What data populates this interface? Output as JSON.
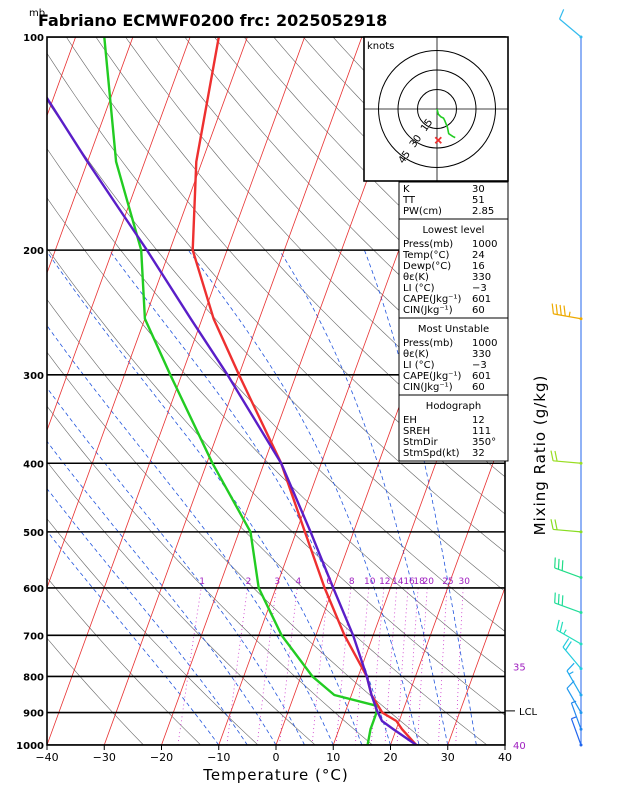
{
  "header": {
    "pressure_unit": "mb",
    "title": "Fabriano ECMWF0200  frc: 2025052918"
  },
  "chart_data": {
    "type": "line",
    "xlabel": "Temperature (°C)",
    "ylabel_right": "Mixing Ratio  (g/kg)",
    "x_ticks": [
      -40,
      -30,
      -20,
      -10,
      0,
      10,
      20,
      30,
      40
    ],
    "x_tick_labels": [
      "−40",
      "−30",
      "−20",
      "−10",
      "0",
      "10",
      "20",
      "30",
      "40"
    ],
    "xlim": [
      -40,
      40
    ],
    "pressure_levels": [
      100,
      200,
      300,
      400,
      500,
      600,
      700,
      800,
      900,
      1000
    ],
    "pressure_labels": [
      "100",
      "200",
      "300",
      "400",
      "500",
      "600",
      "700",
      "800",
      "900",
      "1000"
    ],
    "skew_deg_per_log": 45,
    "colors": {
      "temperature": "#ee3030",
      "dewpoint": "#22cc22",
      "parcel": "#5a1ec8",
      "isotherm": "#e83030",
      "dry_adiabat": "#666666",
      "moist_adiabat": "#2255dd",
      "mixing_ratio": "#cc33cc",
      "mixing_label": "#a020c0",
      "frame": "#000000"
    },
    "series": [
      {
        "key": "temperature",
        "p": [
          1000,
          950,
          925,
          900,
          850,
          800,
          700,
          600,
          500,
          400,
          300,
          250,
          200,
          150,
          100
        ],
        "t": [
          24.5,
          21,
          19.5,
          16.5,
          13.5,
          11.5,
          5,
          -1.5,
          -8.5,
          -17,
          -30,
          -38,
          -46,
          -51,
          -55
        ]
      },
      {
        "key": "dewpoint",
        "p": [
          1000,
          950,
          925,
          900,
          880,
          850,
          800,
          700,
          600,
          500,
          400,
          300,
          250,
          200,
          150,
          100
        ],
        "t": [
          16,
          15.5,
          15.5,
          15.5,
          15,
          7,
          2,
          -6,
          -13,
          -18,
          -29,
          -42,
          -50,
          -55,
          -65,
          -75
        ]
      },
      {
        "key": "parcel",
        "p": [
          1000,
          950,
          925,
          895,
          850,
          800,
          700,
          600,
          500,
          400,
          300,
          250,
          200,
          150,
          120
        ],
        "t": [
          24.5,
          19.5,
          17,
          15.5,
          13.5,
          11.5,
          6.5,
          0,
          -7.5,
          -17,
          -32,
          -42,
          -54,
          -70,
          -82
        ]
      }
    ],
    "isotherms_from": -110,
    "isotherms_to": 40,
    "isotherm_step": 10,
    "dry_adiabats_theta_K": [
      250,
      260,
      270,
      280,
      290,
      300,
      310,
      320,
      330,
      340,
      350,
      360,
      370,
      380,
      390,
      400,
      410,
      420,
      430,
      440,
      450,
      460,
      470,
      480,
      490,
      500,
      510,
      520,
      530,
      540,
      550,
      560,
      570,
      580
    ],
    "moist_adiabats_thetaw_C": [
      -10,
      -5,
      0,
      5,
      10,
      15,
      20,
      25,
      30,
      35
    ],
    "mixing_ratios_gkg": [
      1,
      2,
      3,
      4,
      6,
      8,
      10,
      12,
      14,
      16,
      18,
      20,
      25,
      30
    ],
    "mixing_ratio_labels": [
      "1",
      "2",
      "3",
      "4",
      "6",
      "8",
      "10",
      "12",
      "14",
      "16",
      "18",
      "20",
      "25",
      "30"
    ],
    "isotherm_edge_labels": [
      "35",
      "40"
    ],
    "lcl": {
      "p": 895,
      "label": "LCL"
    },
    "hodograph": {
      "units": "knots",
      "ring_labels": [
        "15",
        "30",
        "45"
      ],
      "ring_knots": [
        15,
        30,
        45
      ],
      "trace_kt": [
        [
          0,
          0
        ],
        [
          1,
          -4
        ],
        [
          3,
          -6
        ],
        [
          5,
          -7
        ],
        [
          6,
          -9
        ],
        [
          8,
          -14
        ],
        [
          9,
          -19
        ],
        [
          12,
          -21
        ],
        [
          14,
          -22
        ]
      ],
      "storm_motion_kt": [
        1,
        -24
      ]
    },
    "indices": {
      "global": [
        [
          "K",
          "30"
        ],
        [
          "TT",
          "51"
        ],
        [
          "PW(cm)",
          "2.85"
        ]
      ],
      "lowest_title": "Lowest level",
      "lowest": [
        [
          "Press(mb)",
          "1000"
        ],
        [
          "Temp(°C)",
          "24"
        ],
        [
          "Dewp(°C)",
          "16"
        ],
        [
          "θε(K)",
          "330"
        ],
        [
          "LI  (°C)",
          "−3"
        ],
        [
          "CAPE(Jkg⁻¹)",
          "601"
        ],
        [
          "CIN(Jkg⁻¹)",
          "60"
        ]
      ],
      "unstable_title": "Most Unstable",
      "unstable": [
        [
          "Press(mb)",
          "1000"
        ],
        [
          "θε(K)",
          "330"
        ],
        [
          "LI  (°C)",
          "−3"
        ],
        [
          "CAPE(Jkg⁻¹)",
          "601"
        ],
        [
          "CIN(Jkg⁻¹)",
          "60"
        ]
      ],
      "hodo_title": "Hodograph",
      "hodo": [
        [
          "EH",
          "12"
        ],
        [
          "SREH",
          "111"
        ],
        [
          "StmDir",
          "350°"
        ],
        [
          "StmSpd(kt)",
          "32"
        ]
      ]
    },
    "wind_barbs": [
      {
        "p": 100,
        "dir": 310,
        "kt": 10,
        "color": "#33bbee"
      },
      {
        "p": 250,
        "dir": 280,
        "kt": 45,
        "color": "#eeaa00"
      },
      {
        "p": 400,
        "dir": 275,
        "kt": 20,
        "color": "#99dd22"
      },
      {
        "p": 500,
        "dir": 275,
        "kt": 20,
        "color": "#88dd22"
      },
      {
        "p": 580,
        "dir": 290,
        "kt": 30,
        "color": "#22dd88"
      },
      {
        "p": 650,
        "dir": 290,
        "kt": 30,
        "color": "#22dd99"
      },
      {
        "p": 720,
        "dir": 300,
        "kt": 25,
        "color": "#22ddbb"
      },
      {
        "p": 780,
        "dir": 320,
        "kt": 20,
        "color": "#22ccdd"
      },
      {
        "p": 850,
        "dir": 330,
        "kt": 15,
        "color": "#22aaee"
      },
      {
        "p": 900,
        "dir": 330,
        "kt": 10,
        "color": "#2299ee"
      },
      {
        "p": 950,
        "dir": 340,
        "kt": 8,
        "color": "#2288ee"
      },
      {
        "p": 1000,
        "dir": 340,
        "kt": 6,
        "color": "#2266ee"
      }
    ]
  }
}
